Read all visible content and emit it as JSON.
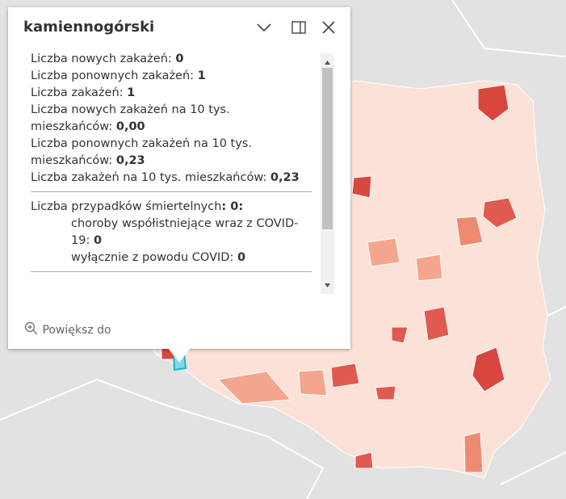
{
  "popup": {
    "title": "kamiennogórski",
    "fields": [
      {
        "label": "Liczba nowych zakażeń:",
        "value": "0"
      },
      {
        "label": "Liczba ponownych zakażeń:",
        "value": "1"
      },
      {
        "label": "Liczba zakażeń:",
        "value": "1"
      },
      {
        "label": "Liczba nowych zakażeń na 10 tys. mieszkańców:",
        "value": "0,00"
      },
      {
        "label": "Liczba ponownych zakażeń na 10 tys. mieszkańców:",
        "value": "0,23"
      },
      {
        "label": "Liczba zakażeń na 10 tys. mieszkańców:",
        "value": "0,23"
      }
    ],
    "deaths": {
      "label": "Liczba przypadków śmiertelnych",
      "value": ": 0:",
      "items": [
        {
          "label": "choroby współistniejące wraz z COVID-19:",
          "value": "0"
        },
        {
          "label": "wyłącznie z powodu COVID:",
          "value": "0"
        }
      ]
    },
    "zoom": "Powiększ do"
  }
}
